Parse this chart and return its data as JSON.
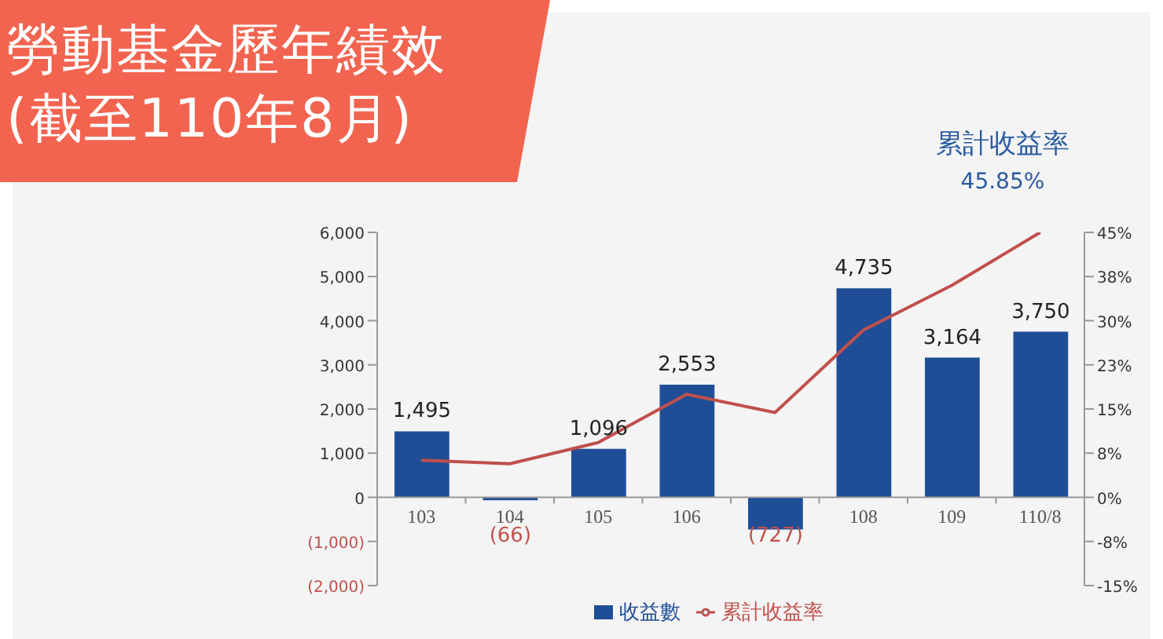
{
  "chart_data": {
    "type": "bar",
    "title": "勞動基金歷年績效",
    "subtitle": "(截至110年8月)",
    "categories": [
      "103",
      "104",
      "105",
      "106",
      null,
      "108",
      "109",
      "110/8"
    ],
    "series": [
      {
        "name": "收益數",
        "color": "#1f4e96",
        "values": [
          1495,
          -66,
          1096,
          2553,
          -727,
          4735,
          3164,
          3750
        ],
        "value_labels": [
          "1,495",
          "(66)",
          "1,096",
          "2,553",
          "(727)",
          "4,735",
          "3,164",
          "3,750"
        ]
      },
      {
        "name": "累計收益率",
        "type": "line",
        "axis": "y2",
        "color": "#c0504d",
        "values": [
          6.3,
          5.7,
          9.3,
          17.5,
          14.4,
          28.4,
          36,
          45
        ]
      }
    ],
    "annotations": [
      "累計收益率",
      "45.85%"
    ],
    "ylim": [
      -2000,
      6000
    ],
    "yticks": [
      {
        "value": -2000,
        "label": "(2,000)"
      },
      {
        "value": -1000,
        "label": "(1,000)"
      },
      0,
      {
        "value": 1000,
        "label": "1,000"
      },
      {
        "value": 2000,
        "label": "2,000"
      },
      {
        "value": 3000,
        "label": "3,000"
      },
      {
        "value": 4000,
        "label": "4,000"
      },
      {
        "value": 5000,
        "label": "5,000"
      },
      {
        "value": 6000,
        "label": "6,000"
      }
    ],
    "y2lim": [
      -15,
      45
    ],
    "y2ticks": [
      {
        "value": -15,
        "label": "-15%"
      },
      {
        "value": -7.5,
        "label": "-8%"
      },
      {
        "value": 0,
        "label": "0%"
      },
      {
        "value": 7.5,
        "label": "8%"
      },
      {
        "value": 15,
        "label": "15%"
      },
      {
        "value": 22.5,
        "label": "23%"
      },
      {
        "value": 30,
        "label": "30%"
      },
      {
        "value": 37.5,
        "label": "38%"
      },
      {
        "value": 45,
        "label": "45%"
      }
    ],
    "grid": false,
    "legend": "bottom",
    "marker": "none",
    "line_style": "solid"
  }
}
